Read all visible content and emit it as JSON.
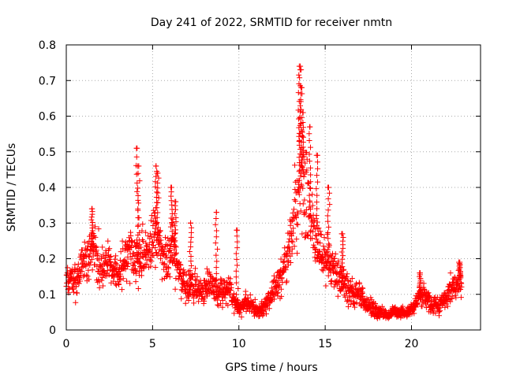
{
  "chart_data": {
    "type": "scatter",
    "title": "Day 241 of 2022, SRMTID for receiver nmtn",
    "xlabel": "GPS time / hours",
    "ylabel": "SRMTID / TECUs",
    "xlim": [
      0,
      24
    ],
    "ylim": [
      0,
      0.8
    ],
    "xticks": [
      0,
      5,
      10,
      15,
      20
    ],
    "yticks": [
      0,
      0.1,
      0.2,
      0.3,
      0.4,
      0.5,
      0.6,
      0.7,
      0.8
    ],
    "xtick_labels": [
      "0",
      "5",
      "10",
      "15",
      "20"
    ],
    "ytick_labels": [
      "0",
      "0.1",
      "0.2",
      "0.3",
      "0.4",
      "0.5",
      "0.6",
      "0.7",
      "0.8"
    ],
    "grid": true,
    "marker": "+",
    "marker_color": "#ff0000",
    "series": [
      {
        "name": "SRMTID",
        "envelope": [
          [
            0.0,
            0.15
          ],
          [
            0.3,
            0.14
          ],
          [
            0.6,
            0.13
          ],
          [
            0.9,
            0.17
          ],
          [
            1.2,
            0.19
          ],
          [
            1.5,
            0.24
          ],
          [
            1.8,
            0.2
          ],
          [
            2.1,
            0.17
          ],
          [
            2.4,
            0.19
          ],
          [
            2.7,
            0.17
          ],
          [
            3.0,
            0.16
          ],
          [
            3.3,
            0.18
          ],
          [
            3.6,
            0.21
          ],
          [
            3.9,
            0.2
          ],
          [
            4.2,
            0.19
          ],
          [
            4.5,
            0.21
          ],
          [
            4.8,
            0.24
          ],
          [
            5.2,
            0.27
          ],
          [
            5.5,
            0.24
          ],
          [
            5.8,
            0.18
          ],
          [
            6.1,
            0.24
          ],
          [
            6.4,
            0.2
          ],
          [
            6.7,
            0.14
          ],
          [
            7.0,
            0.12
          ],
          [
            7.3,
            0.13
          ],
          [
            7.6,
            0.12
          ],
          [
            7.9,
            0.11
          ],
          [
            8.2,
            0.13
          ],
          [
            8.5,
            0.12
          ],
          [
            8.8,
            0.1
          ],
          [
            9.1,
            0.11
          ],
          [
            9.4,
            0.13
          ],
          [
            9.7,
            0.08
          ],
          [
            10.0,
            0.06
          ],
          [
            10.3,
            0.08
          ],
          [
            10.6,
            0.07
          ],
          [
            10.9,
            0.06
          ],
          [
            11.2,
            0.05
          ],
          [
            11.5,
            0.07
          ],
          [
            11.8,
            0.09
          ],
          [
            12.1,
            0.12
          ],
          [
            12.4,
            0.14
          ],
          [
            12.7,
            0.19
          ],
          [
            13.0,
            0.25
          ],
          [
            13.3,
            0.34
          ],
          [
            13.6,
            0.46
          ],
          [
            13.8,
            0.4
          ],
          [
            14.1,
            0.32
          ],
          [
            14.4,
            0.26
          ],
          [
            14.7,
            0.22
          ],
          [
            15.0,
            0.2
          ],
          [
            15.3,
            0.19
          ],
          [
            15.6,
            0.16
          ],
          [
            15.9,
            0.14
          ],
          [
            16.2,
            0.13
          ],
          [
            16.5,
            0.11
          ],
          [
            16.8,
            0.1
          ],
          [
            17.1,
            0.09
          ],
          [
            17.4,
            0.07
          ],
          [
            17.7,
            0.06
          ],
          [
            18.0,
            0.05
          ],
          [
            18.3,
            0.05
          ],
          [
            18.6,
            0.04
          ],
          [
            18.9,
            0.05
          ],
          [
            19.2,
            0.05
          ],
          [
            19.5,
            0.05
          ],
          [
            19.8,
            0.05
          ],
          [
            20.1,
            0.06
          ],
          [
            20.4,
            0.09
          ],
          [
            20.7,
            0.1
          ],
          [
            21.0,
            0.08
          ],
          [
            21.3,
            0.07
          ],
          [
            21.6,
            0.07
          ],
          [
            21.9,
            0.09
          ],
          [
            22.2,
            0.11
          ],
          [
            22.5,
            0.12
          ],
          [
            22.9,
            0.15
          ]
        ],
        "peaks": [
          [
            1.5,
            0.34
          ],
          [
            4.1,
            0.51
          ],
          [
            4.2,
            0.46
          ],
          [
            5.2,
            0.46
          ],
          [
            5.3,
            0.44
          ],
          [
            6.1,
            0.4
          ],
          [
            6.3,
            0.36
          ],
          [
            7.2,
            0.3
          ],
          [
            8.7,
            0.33
          ],
          [
            9.9,
            0.28
          ],
          [
            13.5,
            0.74
          ],
          [
            13.55,
            0.73
          ],
          [
            13.6,
            0.68
          ],
          [
            13.7,
            0.61
          ],
          [
            14.1,
            0.57
          ],
          [
            14.5,
            0.49
          ],
          [
            15.2,
            0.4
          ],
          [
            16.0,
            0.27
          ],
          [
            20.5,
            0.16
          ],
          [
            22.8,
            0.19
          ]
        ]
      }
    ]
  }
}
